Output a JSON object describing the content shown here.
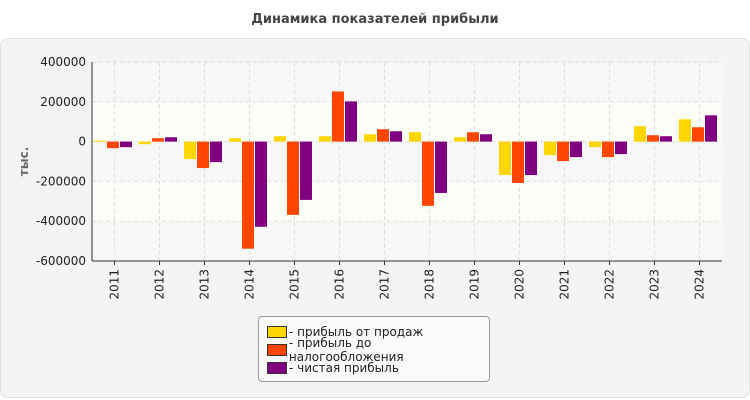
{
  "chart_data": {
    "type": "bar",
    "title": "Динамика показателей прибыли",
    "ylabel": "тыс.",
    "xlabel": "",
    "ylim": [
      -600000,
      400000
    ],
    "yticks": [
      "400000",
      "200000",
      "0",
      "-200000",
      "-400000",
      "-600000"
    ],
    "grid": true,
    "legend_position": "bottom",
    "categories": [
      "2011",
      "2012",
      "2013",
      "2014",
      "2015",
      "2016",
      "2017",
      "2018",
      "2019",
      "2020",
      "2021",
      "2022",
      "2023",
      "2024"
    ],
    "series": [
      {
        "name": "- прибыль от продаж",
        "color": "#FFD700",
        "values": [
          5000,
          -13000,
          -88000,
          17000,
          27000,
          27000,
          37000,
          47000,
          22000,
          -168000,
          -68000,
          -28000,
          77000,
          112000
        ]
      },
      {
        "name": "- прибыль до налогообложения",
        "color": "#FF4500",
        "values": [
          -33000,
          17000,
          -133000,
          -538000,
          -368000,
          252000,
          62000,
          -323000,
          47000,
          -208000,
          -98000,
          -78000,
          32000,
          72000
        ]
      },
      {
        "name": "- чистая прибыль",
        "color": "#800080",
        "values": [
          -28000,
          22000,
          -103000,
          -428000,
          -293000,
          202000,
          52000,
          -258000,
          37000,
          -168000,
          -78000,
          -63000,
          27000,
          132000
        ]
      }
    ]
  }
}
